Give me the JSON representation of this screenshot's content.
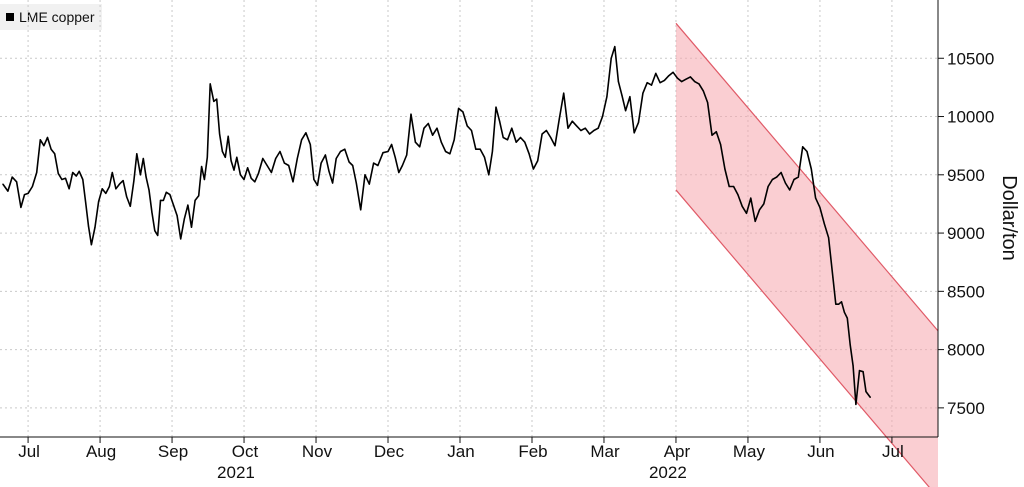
{
  "legend": {
    "label": "LME copper",
    "color": "#000000"
  },
  "chart_data": {
    "type": "line",
    "title": "",
    "xlabel": "",
    "ylabel": "Dollar/ton",
    "ylim": [
      7250,
      11000
    ],
    "grid": true,
    "legend_position": "top-left",
    "line_color": "#000000",
    "channel_color": "#f5a6ad",
    "channel_edge_color": "#e05a67",
    "y_ticks": [
      7500,
      8000,
      8500,
      9000,
      9500,
      10000,
      10500
    ],
    "x_ticks": [
      {
        "label": "Jul",
        "month": 0
      },
      {
        "label": "Aug",
        "month": 1
      },
      {
        "label": "Sep",
        "month": 2
      },
      {
        "label": "Oct",
        "month": 3
      },
      {
        "label": "Nov",
        "month": 4
      },
      {
        "label": "Dec",
        "month": 5
      },
      {
        "label": "Jan",
        "month": 6
      },
      {
        "label": "Feb",
        "month": 7
      },
      {
        "label": "Mar",
        "month": 8
      },
      {
        "label": "Apr",
        "month": 9
      },
      {
        "label": "May",
        "month": 10
      },
      {
        "label": "Jun",
        "month": 11
      },
      {
        "label": "Jul",
        "month": 12
      }
    ],
    "year_labels": [
      {
        "label": "2021",
        "month": 3
      },
      {
        "label": "2022",
        "month": 9
      }
    ],
    "series": [
      {
        "values": [
          [
            -0.35,
            9420
          ],
          [
            -0.28,
            9360
          ],
          [
            -0.22,
            9480
          ],
          [
            -0.16,
            9440
          ],
          [
            -0.1,
            9220
          ],
          [
            -0.05,
            9330
          ],
          [
            0.0,
            9340
          ],
          [
            0.06,
            9400
          ],
          [
            0.12,
            9520
          ],
          [
            0.17,
            9800
          ],
          [
            0.22,
            9750
          ],
          [
            0.27,
            9820
          ],
          [
            0.32,
            9720
          ],
          [
            0.37,
            9680
          ],
          [
            0.42,
            9510
          ],
          [
            0.47,
            9460
          ],
          [
            0.52,
            9470
          ],
          [
            0.57,
            9380
          ],
          [
            0.62,
            9520
          ],
          [
            0.67,
            9490
          ],
          [
            0.71,
            9530
          ],
          [
            0.76,
            9460
          ],
          [
            0.8,
            9260
          ],
          [
            0.84,
            9060
          ],
          [
            0.88,
            8900
          ],
          [
            0.93,
            9050
          ],
          [
            0.98,
            9270
          ],
          [
            1.03,
            9380
          ],
          [
            1.08,
            9340
          ],
          [
            1.13,
            9400
          ],
          [
            1.17,
            9520
          ],
          [
            1.22,
            9380
          ],
          [
            1.27,
            9420
          ],
          [
            1.32,
            9450
          ],
          [
            1.37,
            9310
          ],
          [
            1.42,
            9230
          ],
          [
            1.47,
            9450
          ],
          [
            1.51,
            9680
          ],
          [
            1.56,
            9500
          ],
          [
            1.6,
            9640
          ],
          [
            1.64,
            9480
          ],
          [
            1.68,
            9370
          ],
          [
            1.72,
            9180
          ],
          [
            1.76,
            9020
          ],
          [
            1.8,
            8980
          ],
          [
            1.84,
            9280
          ],
          [
            1.88,
            9280
          ],
          [
            1.92,
            9350
          ],
          [
            1.97,
            9330
          ],
          [
            2.02,
            9240
          ],
          [
            2.07,
            9150
          ],
          [
            2.12,
            8950
          ],
          [
            2.17,
            9120
          ],
          [
            2.22,
            9240
          ],
          [
            2.27,
            9050
          ],
          [
            2.32,
            9280
          ],
          [
            2.37,
            9320
          ],
          [
            2.41,
            9570
          ],
          [
            2.45,
            9460
          ],
          [
            2.49,
            9650
          ],
          [
            2.53,
            10280
          ],
          [
            2.58,
            10130
          ],
          [
            2.62,
            10150
          ],
          [
            2.66,
            9850
          ],
          [
            2.7,
            9700
          ],
          [
            2.74,
            9650
          ],
          [
            2.78,
            9830
          ],
          [
            2.82,
            9620
          ],
          [
            2.86,
            9540
          ],
          [
            2.9,
            9650
          ],
          [
            2.95,
            9500
          ],
          [
            3.0,
            9460
          ],
          [
            3.05,
            9560
          ],
          [
            3.1,
            9470
          ],
          [
            3.15,
            9440
          ],
          [
            3.2,
            9510
          ],
          [
            3.26,
            9640
          ],
          [
            3.32,
            9580
          ],
          [
            3.38,
            9520
          ],
          [
            3.44,
            9640
          ],
          [
            3.5,
            9700
          ],
          [
            3.56,
            9600
          ],
          [
            3.62,
            9580
          ],
          [
            3.68,
            9440
          ],
          [
            3.74,
            9640
          ],
          [
            3.8,
            9800
          ],
          [
            3.86,
            9860
          ],
          [
            3.92,
            9760
          ],
          [
            3.97,
            9460
          ],
          [
            4.02,
            9410
          ],
          [
            4.07,
            9600
          ],
          [
            4.13,
            9670
          ],
          [
            4.18,
            9530
          ],
          [
            4.23,
            9430
          ],
          [
            4.28,
            9640
          ],
          [
            4.34,
            9700
          ],
          [
            4.4,
            9720
          ],
          [
            4.46,
            9610
          ],
          [
            4.51,
            9580
          ],
          [
            4.56,
            9430
          ],
          [
            4.62,
            9200
          ],
          [
            4.68,
            9500
          ],
          [
            4.74,
            9420
          ],
          [
            4.8,
            9600
          ],
          [
            4.86,
            9580
          ],
          [
            4.93,
            9690
          ],
          [
            5.0,
            9700
          ],
          [
            5.05,
            9760
          ],
          [
            5.1,
            9650
          ],
          [
            5.15,
            9520
          ],
          [
            5.2,
            9580
          ],
          [
            5.26,
            9670
          ],
          [
            5.32,
            10020
          ],
          [
            5.38,
            9780
          ],
          [
            5.44,
            9740
          ],
          [
            5.5,
            9900
          ],
          [
            5.56,
            9940
          ],
          [
            5.62,
            9840
          ],
          [
            5.68,
            9900
          ],
          [
            5.74,
            9780
          ],
          [
            5.8,
            9700
          ],
          [
            5.86,
            9680
          ],
          [
            5.92,
            9800
          ],
          [
            5.98,
            10070
          ],
          [
            6.04,
            10040
          ],
          [
            6.1,
            9920
          ],
          [
            6.16,
            9880
          ],
          [
            6.22,
            9720
          ],
          [
            6.28,
            9720
          ],
          [
            6.34,
            9650
          ],
          [
            6.4,
            9500
          ],
          [
            6.45,
            9700
          ],
          [
            6.5,
            10080
          ],
          [
            6.55,
            9960
          ],
          [
            6.6,
            9820
          ],
          [
            6.66,
            9800
          ],
          [
            6.72,
            9900
          ],
          [
            6.78,
            9780
          ],
          [
            6.84,
            9820
          ],
          [
            6.9,
            9780
          ],
          [
            6.96,
            9680
          ],
          [
            7.02,
            9550
          ],
          [
            7.08,
            9620
          ],
          [
            7.14,
            9850
          ],
          [
            7.2,
            9880
          ],
          [
            7.26,
            9820
          ],
          [
            7.32,
            9750
          ],
          [
            7.38,
            9980
          ],
          [
            7.44,
            10200
          ],
          [
            7.5,
            9900
          ],
          [
            7.56,
            9960
          ],
          [
            7.62,
            9920
          ],
          [
            7.68,
            9880
          ],
          [
            7.74,
            9900
          ],
          [
            7.8,
            9850
          ],
          [
            7.86,
            9880
          ],
          [
            7.92,
            9900
          ],
          [
            7.98,
            10000
          ],
          [
            8.04,
            10170
          ],
          [
            8.1,
            10500
          ],
          [
            8.15,
            10600
          ],
          [
            8.2,
            10300
          ],
          [
            8.25,
            10180
          ],
          [
            8.3,
            10050
          ],
          [
            8.36,
            10170
          ],
          [
            8.42,
            9860
          ],
          [
            8.48,
            9950
          ],
          [
            8.54,
            10200
          ],
          [
            8.6,
            10290
          ],
          [
            8.66,
            10270
          ],
          [
            8.72,
            10370
          ],
          [
            8.78,
            10290
          ],
          [
            8.84,
            10310
          ],
          [
            8.9,
            10350
          ],
          [
            8.96,
            10380
          ],
          [
            9.02,
            10330
          ],
          [
            9.08,
            10300
          ],
          [
            9.14,
            10320
          ],
          [
            9.2,
            10340
          ],
          [
            9.26,
            10300
          ],
          [
            9.32,
            10280
          ],
          [
            9.38,
            10220
          ],
          [
            9.44,
            10120
          ],
          [
            9.5,
            9840
          ],
          [
            9.56,
            9870
          ],
          [
            9.62,
            9760
          ],
          [
            9.68,
            9550
          ],
          [
            9.74,
            9400
          ],
          [
            9.8,
            9400
          ],
          [
            9.86,
            9330
          ],
          [
            9.92,
            9230
          ],
          [
            9.98,
            9170
          ],
          [
            10.04,
            9300
          ],
          [
            10.1,
            9100
          ],
          [
            10.16,
            9200
          ],
          [
            10.22,
            9250
          ],
          [
            10.28,
            9400
          ],
          [
            10.34,
            9460
          ],
          [
            10.4,
            9480
          ],
          [
            10.46,
            9520
          ],
          [
            10.52,
            9430
          ],
          [
            10.58,
            9370
          ],
          [
            10.64,
            9460
          ],
          [
            10.7,
            9480
          ],
          [
            10.76,
            9740
          ],
          [
            10.82,
            9700
          ],
          [
            10.88,
            9550
          ],
          [
            10.94,
            9300
          ],
          [
            11.0,
            9220
          ],
          [
            11.06,
            9080
          ],
          [
            11.12,
            8960
          ],
          [
            11.18,
            8620
          ],
          [
            11.22,
            8390
          ],
          [
            11.26,
            8390
          ],
          [
            11.3,
            8410
          ],
          [
            11.34,
            8320
          ],
          [
            11.38,
            8270
          ],
          [
            11.42,
            8040
          ],
          [
            11.46,
            7860
          ],
          [
            11.5,
            7530
          ],
          [
            11.55,
            7820
          ],
          [
            11.6,
            7810
          ],
          [
            11.64,
            7640
          ],
          [
            11.7,
            7590
          ]
        ]
      }
    ]
  }
}
